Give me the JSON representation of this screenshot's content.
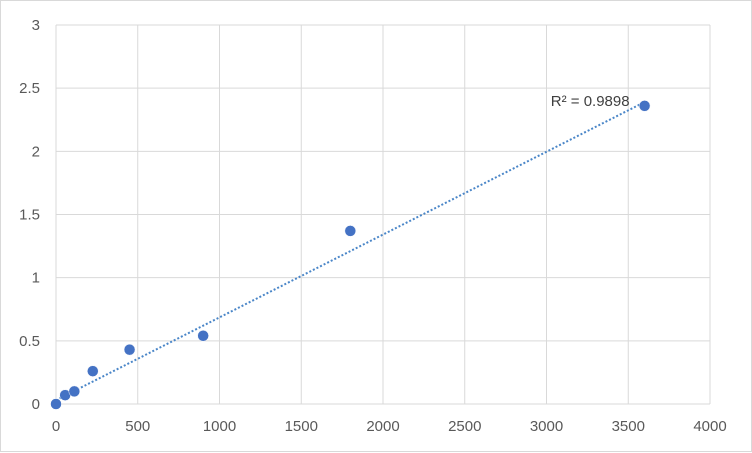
{
  "chart_data": {
    "type": "scatter",
    "title": "",
    "xlabel": "",
    "ylabel": "",
    "xlim": [
      0,
      4000
    ],
    "ylim": [
      0,
      3
    ],
    "x_ticks": [
      "0",
      "500",
      "1000",
      "1500",
      "2000",
      "2500",
      "3000",
      "3500",
      "4000"
    ],
    "y_ticks": [
      "0",
      "0.5",
      "1",
      "1.5",
      "2",
      "2.5",
      "3"
    ],
    "grid": true,
    "legend": "none",
    "series": [
      {
        "points": [
          {
            "x": 0,
            "y": 0.0
          },
          {
            "x": 56,
            "y": 0.07
          },
          {
            "x": 112,
            "y": 0.1
          },
          {
            "x": 225,
            "y": 0.26
          },
          {
            "x": 450,
            "y": 0.43
          },
          {
            "x": 900,
            "y": 0.54
          },
          {
            "x": 1800,
            "y": 1.37
          },
          {
            "x": 3600,
            "y": 2.36
          }
        ],
        "color": "#4472c4"
      }
    ],
    "trendline": {
      "type": "linear",
      "from": {
        "x": 0,
        "y": 0.03
      },
      "to": {
        "x": 3600,
        "y": 2.39
      },
      "color": "#4a86c8",
      "style": "dotted",
      "label": "R² = 0.9898"
    }
  }
}
